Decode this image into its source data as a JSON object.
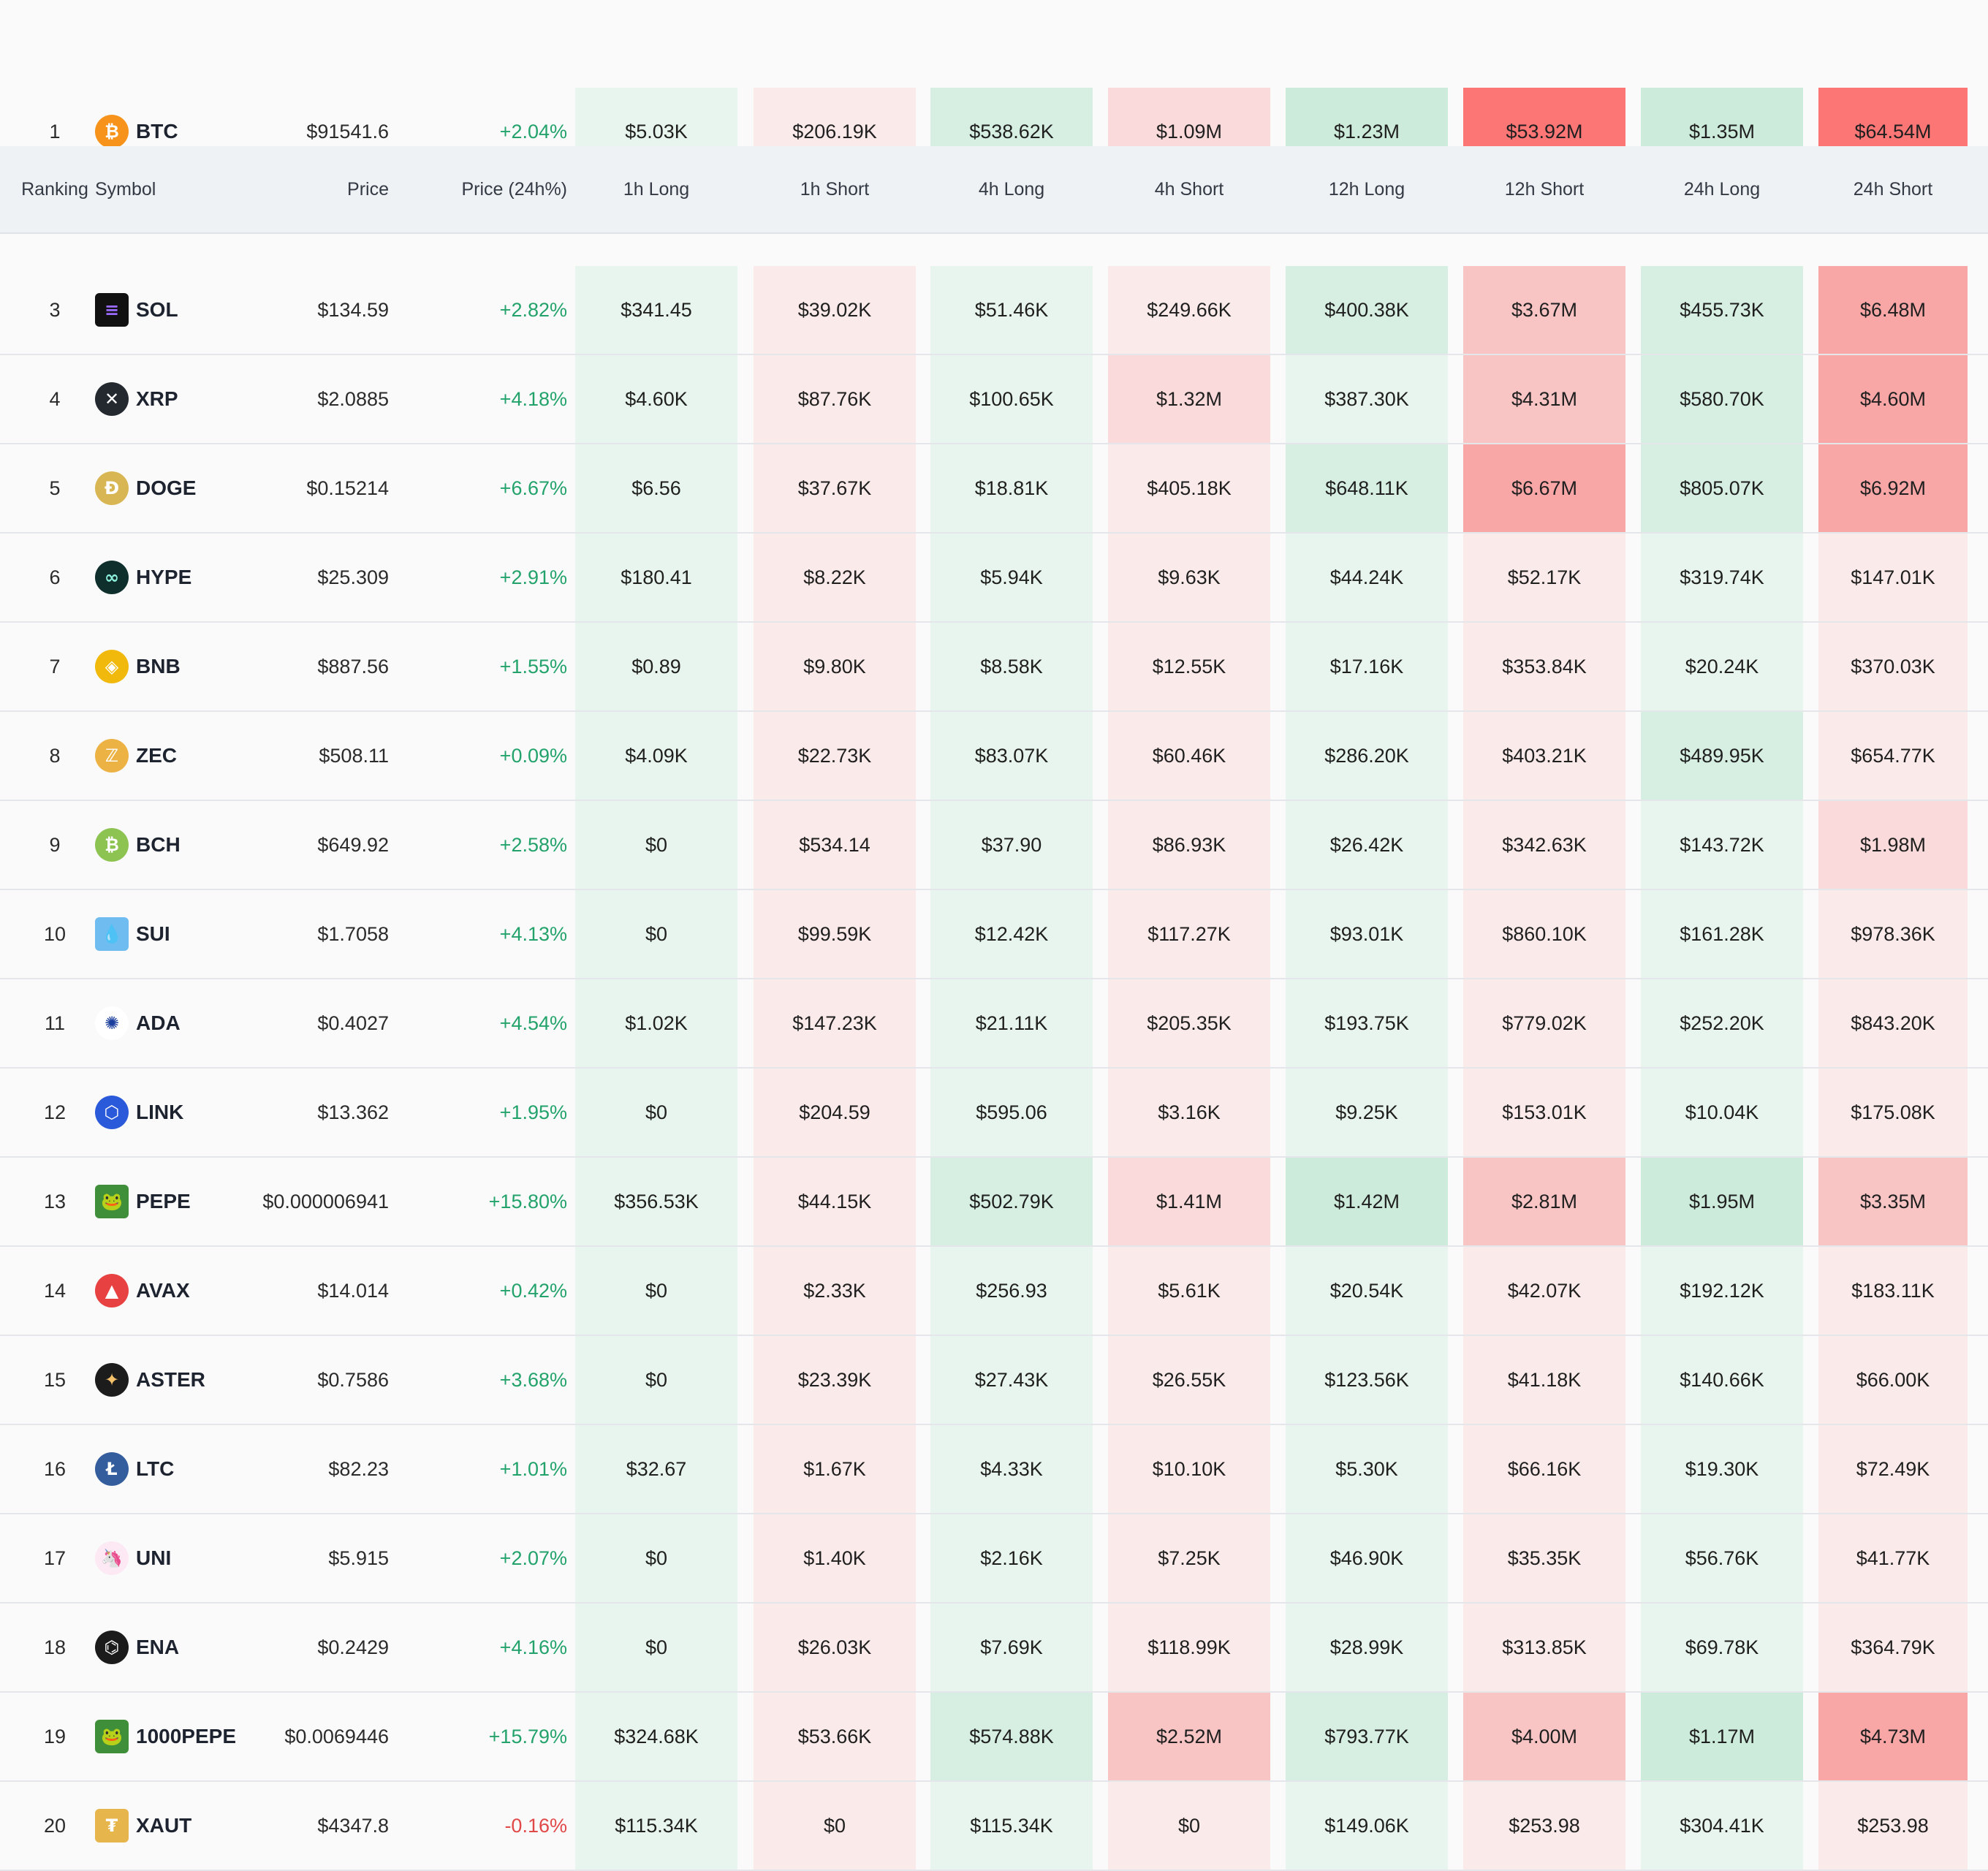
{
  "header": {
    "ranking": "Ranking",
    "symbol": "Symbol",
    "price": "Price",
    "price_change": "Price (24h%)",
    "h1_long": "1h Long",
    "h1_short": "1h Short",
    "h4_long": "4h Long",
    "h4_short": "4h Short",
    "h12_long": "12h Long",
    "h12_short": "12h Short",
    "h24_long": "24h Long",
    "h24_short": "24h Short"
  },
  "colors": {
    "long_light": "#e8f5ee",
    "long_mid": "#d6efe2",
    "long_strong": "#cdebdb",
    "short_light": "#fbeaea",
    "short_mid": "#fadada",
    "short_med2": "#f8c4c4",
    "short_strong": "#f8a6a6",
    "short_max": "#fd7676",
    "positive_text": "#23a36b",
    "negative_text": "#e14848"
  },
  "rows": [
    {
      "rank": "1",
      "symbol": "BTC",
      "icon": "btc-icon",
      "price": "$91541.6",
      "change": "+2.04%",
      "trend": "up",
      "liq": [
        "$5.03K",
        "$206.19K",
        "$538.62K",
        "$1.09M",
        "$1.23M",
        "$53.92M",
        "$1.35M",
        "$64.54M"
      ]
    },
    {
      "rank": "3",
      "symbol": "SOL",
      "icon": "sol-icon",
      "price": "$134.59",
      "change": "+2.82%",
      "trend": "up",
      "liq": [
        "$341.45",
        "$39.02K",
        "$51.46K",
        "$249.66K",
        "$400.38K",
        "$3.67M",
        "$455.73K",
        "$6.48M"
      ]
    },
    {
      "rank": "4",
      "symbol": "XRP",
      "icon": "xrp-icon",
      "price": "$2.0885",
      "change": "+4.18%",
      "trend": "up",
      "liq": [
        "$4.60K",
        "$87.76K",
        "$100.65K",
        "$1.32M",
        "$387.30K",
        "$4.31M",
        "$580.70K",
        "$4.60M"
      ]
    },
    {
      "rank": "5",
      "symbol": "DOGE",
      "icon": "doge-icon",
      "price": "$0.15214",
      "change": "+6.67%",
      "trend": "up",
      "liq": [
        "$6.56",
        "$37.67K",
        "$18.81K",
        "$405.18K",
        "$648.11K",
        "$6.67M",
        "$805.07K",
        "$6.92M"
      ]
    },
    {
      "rank": "6",
      "symbol": "HYPE",
      "icon": "hype-icon",
      "price": "$25.309",
      "change": "+2.91%",
      "trend": "up",
      "liq": [
        "$180.41",
        "$8.22K",
        "$5.94K",
        "$9.63K",
        "$44.24K",
        "$52.17K",
        "$319.74K",
        "$147.01K"
      ]
    },
    {
      "rank": "7",
      "symbol": "BNB",
      "icon": "bnb-icon",
      "price": "$887.56",
      "change": "+1.55%",
      "trend": "up",
      "liq": [
        "$0.89",
        "$9.80K",
        "$8.58K",
        "$12.55K",
        "$17.16K",
        "$353.84K",
        "$20.24K",
        "$370.03K"
      ]
    },
    {
      "rank": "8",
      "symbol": "ZEC",
      "icon": "zec-icon",
      "price": "$508.11",
      "change": "+0.09%",
      "trend": "up",
      "liq": [
        "$4.09K",
        "$22.73K",
        "$83.07K",
        "$60.46K",
        "$286.20K",
        "$403.21K",
        "$489.95K",
        "$654.77K"
      ]
    },
    {
      "rank": "9",
      "symbol": "BCH",
      "icon": "bch-icon",
      "price": "$649.92",
      "change": "+2.58%",
      "trend": "up",
      "liq": [
        "$0",
        "$534.14",
        "$37.90",
        "$86.93K",
        "$26.42K",
        "$342.63K",
        "$143.72K",
        "$1.98M"
      ]
    },
    {
      "rank": "10",
      "symbol": "SUI",
      "icon": "sui-icon",
      "price": "$1.7058",
      "change": "+4.13%",
      "trend": "up",
      "liq": [
        "$0",
        "$99.59K",
        "$12.42K",
        "$117.27K",
        "$93.01K",
        "$860.10K",
        "$161.28K",
        "$978.36K"
      ]
    },
    {
      "rank": "11",
      "symbol": "ADA",
      "icon": "ada-icon",
      "price": "$0.4027",
      "change": "+4.54%",
      "trend": "up",
      "liq": [
        "$1.02K",
        "$147.23K",
        "$21.11K",
        "$205.35K",
        "$193.75K",
        "$779.02K",
        "$252.20K",
        "$843.20K"
      ]
    },
    {
      "rank": "12",
      "symbol": "LINK",
      "icon": "link-icon",
      "price": "$13.362",
      "change": "+1.95%",
      "trend": "up",
      "liq": [
        "$0",
        "$204.59",
        "$595.06",
        "$3.16K",
        "$9.25K",
        "$153.01K",
        "$10.04K",
        "$175.08K"
      ]
    },
    {
      "rank": "13",
      "symbol": "PEPE",
      "icon": "pepe-icon",
      "price": "$0.000006941",
      "change": "+15.80%",
      "trend": "up",
      "liq": [
        "$356.53K",
        "$44.15K",
        "$502.79K",
        "$1.41M",
        "$1.42M",
        "$2.81M",
        "$1.95M",
        "$3.35M"
      ]
    },
    {
      "rank": "14",
      "symbol": "AVAX",
      "icon": "avax-icon",
      "price": "$14.014",
      "change": "+0.42%",
      "trend": "up",
      "liq": [
        "$0",
        "$2.33K",
        "$256.93",
        "$5.61K",
        "$20.54K",
        "$42.07K",
        "$192.12K",
        "$183.11K"
      ]
    },
    {
      "rank": "15",
      "symbol": "ASTER",
      "icon": "aster-icon",
      "price": "$0.7586",
      "change": "+3.68%",
      "trend": "up",
      "liq": [
        "$0",
        "$23.39K",
        "$27.43K",
        "$26.55K",
        "$123.56K",
        "$41.18K",
        "$140.66K",
        "$66.00K"
      ]
    },
    {
      "rank": "16",
      "symbol": "LTC",
      "icon": "ltc-icon",
      "price": "$82.23",
      "change": "+1.01%",
      "trend": "up",
      "liq": [
        "$32.67",
        "$1.67K",
        "$4.33K",
        "$10.10K",
        "$5.30K",
        "$66.16K",
        "$19.30K",
        "$72.49K"
      ]
    },
    {
      "rank": "17",
      "symbol": "UNI",
      "icon": "uni-icon",
      "price": "$5.915",
      "change": "+2.07%",
      "trend": "up",
      "liq": [
        "$0",
        "$1.40K",
        "$2.16K",
        "$7.25K",
        "$46.90K",
        "$35.35K",
        "$56.76K",
        "$41.77K"
      ]
    },
    {
      "rank": "18",
      "symbol": "ENA",
      "icon": "ena-icon",
      "price": "$0.2429",
      "change": "+4.16%",
      "trend": "up",
      "liq": [
        "$0",
        "$26.03K",
        "$7.69K",
        "$118.99K",
        "$28.99K",
        "$313.85K",
        "$69.78K",
        "$364.79K"
      ]
    },
    {
      "rank": "19",
      "symbol": "1000PEPE",
      "icon": "pepe-icon",
      "price": "$0.0069446",
      "change": "+15.79%",
      "trend": "up",
      "liq": [
        "$324.68K",
        "$53.66K",
        "$574.88K",
        "$2.52M",
        "$793.77K",
        "$4.00M",
        "$1.17M",
        "$4.73M"
      ]
    },
    {
      "rank": "20",
      "symbol": "XAUT",
      "icon": "xaut-icon",
      "price": "$4347.8",
      "change": "-0.16%",
      "trend": "down",
      "liq": [
        "$115.34K",
        "$0",
        "$115.34K",
        "$0",
        "$149.06K",
        "$253.98",
        "$304.41K",
        "$253.98"
      ]
    }
  ]
}
